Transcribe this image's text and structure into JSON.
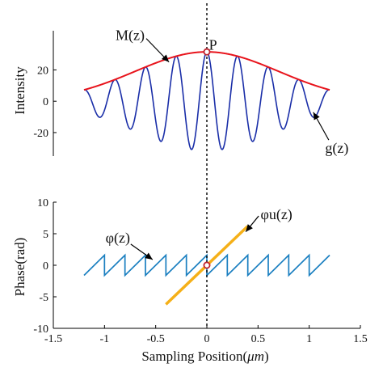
{
  "chart_data": [
    {
      "type": "line",
      "ylabel": "Intensity",
      "xlim": [
        -1.5,
        1.5
      ],
      "ylim": [
        -35,
        45
      ],
      "yticks": [
        -20,
        0,
        20
      ],
      "grid": false,
      "series": [
        {
          "name": "M(z)",
          "color": "#e8141c",
          "function": "envelope",
          "amplitude": 31.5,
          "sigma": 0.7,
          "x_range": [
            -1.2,
            1.2
          ]
        },
        {
          "name": "g(z)",
          "color": "#1a2ea8",
          "function": "modulated",
          "amplitude": 31.5,
          "sigma": 0.7,
          "period": 0.3,
          "x_range": [
            -1.2,
            1.2
          ]
        }
      ],
      "annotations": [
        {
          "text": "M(z)",
          "x": -0.75,
          "y": 39,
          "arrow_to": [
            -0.37,
            25
          ]
        },
        {
          "text": "P",
          "x": 0.06,
          "y": 33,
          "marker_at": [
            0,
            31.5
          ]
        },
        {
          "text": "g(z)",
          "x": 1.27,
          "y": -33,
          "arrow_to": [
            1.04,
            -7
          ]
        }
      ]
    },
    {
      "type": "line",
      "ylabel": "Phase(rad)",
      "xlabel_text": "Sampling Position(",
      "xlabel_unit": "μm",
      "xlabel_close": ")",
      "xlim": [
        -1.5,
        1.5
      ],
      "ylim": [
        -10,
        10
      ],
      "xticks": [
        -1.5,
        -1,
        -0.5,
        0,
        0.5,
        1,
        1.5
      ],
      "yticks": [
        -10,
        -5,
        0,
        5,
        10
      ],
      "grid": false,
      "series": [
        {
          "name": "φ(z)",
          "color": "#1a7fc0",
          "function": "sawtooth",
          "period": 0.2,
          "low": -1.6,
          "high": 1.6,
          "x_range": [
            -1.2,
            1.2
          ]
        },
        {
          "name": "φu(z)",
          "color": "#f5b018",
          "function": "linear",
          "x": [
            -0.4,
            0.4
          ],
          "y": [
            -6.2,
            6.2
          ]
        }
      ],
      "annotations": [
        {
          "text": "φ(z)",
          "x": -0.87,
          "y": 3.6,
          "arrow_to": [
            -0.53,
            0.9
          ]
        },
        {
          "text": "φu(z)",
          "x": 0.68,
          "y": 7.3,
          "arrow_to": [
            0.38,
            5.3
          ]
        }
      ],
      "marker_at": [
        0,
        0
      ]
    }
  ],
  "reference_line": {
    "x": 0,
    "style": "dotted",
    "color": "#000000"
  },
  "marker_color": "#c0242f"
}
